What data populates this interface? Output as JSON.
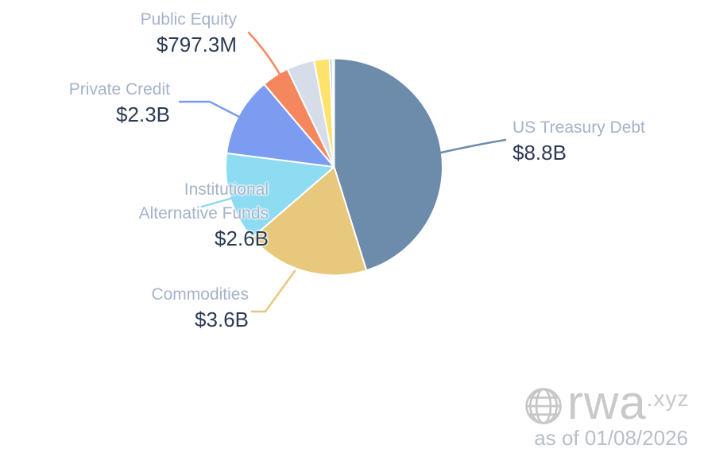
{
  "chart_data": {
    "type": "pie",
    "title": "",
    "direction": "clockwise",
    "start_angle_deg": 0,
    "legend_position": "callouts",
    "slices": [
      {
        "label": "US Treasury Debt",
        "value_label": "$8.8B",
        "value_billions": 8.8,
        "color": "#6d8cab"
      },
      {
        "label": "Commodities",
        "value_label": "$3.6B",
        "value_billions": 3.6,
        "color": "#e7c87c"
      },
      {
        "label": "Institutional Alternative Funds",
        "value_label": "$2.6B",
        "value_billions": 2.6,
        "color": "#8edcf2"
      },
      {
        "label": "Private Credit",
        "value_label": "$2.3B",
        "value_billions": 2.3,
        "color": "#7b9cf0"
      },
      {
        "label": "Public Equity",
        "value_label": "$797.3M",
        "value_billions": 0.7973,
        "color": "#f5875f"
      },
      {
        "label": "",
        "value_label": "",
        "value_billions": 0.8,
        "approx": true,
        "color": "#d6dde9"
      },
      {
        "label": "",
        "value_label": "",
        "value_billions": 0.45,
        "approx": true,
        "color": "#fde36c"
      },
      {
        "label": "",
        "value_label": "",
        "value_billions": 0.08,
        "approx": true,
        "color": "#a6c3de"
      },
      {
        "label": "",
        "value_label": "",
        "value_billions": 0.05,
        "approx": true,
        "color": "#a88fe2"
      }
    ],
    "palette": {
      "callout_name_color": "#a5b3c9",
      "callout_value_color": "#2e3b54",
      "slice_separator_color": "#ffffff"
    }
  },
  "footer": {
    "brand": "rwa",
    "brand_suffix": ".xyz",
    "as_of": "as of 01/08/2026",
    "logo_color": "#c9c9c9",
    "as_of_color": "#b7bec9"
  }
}
